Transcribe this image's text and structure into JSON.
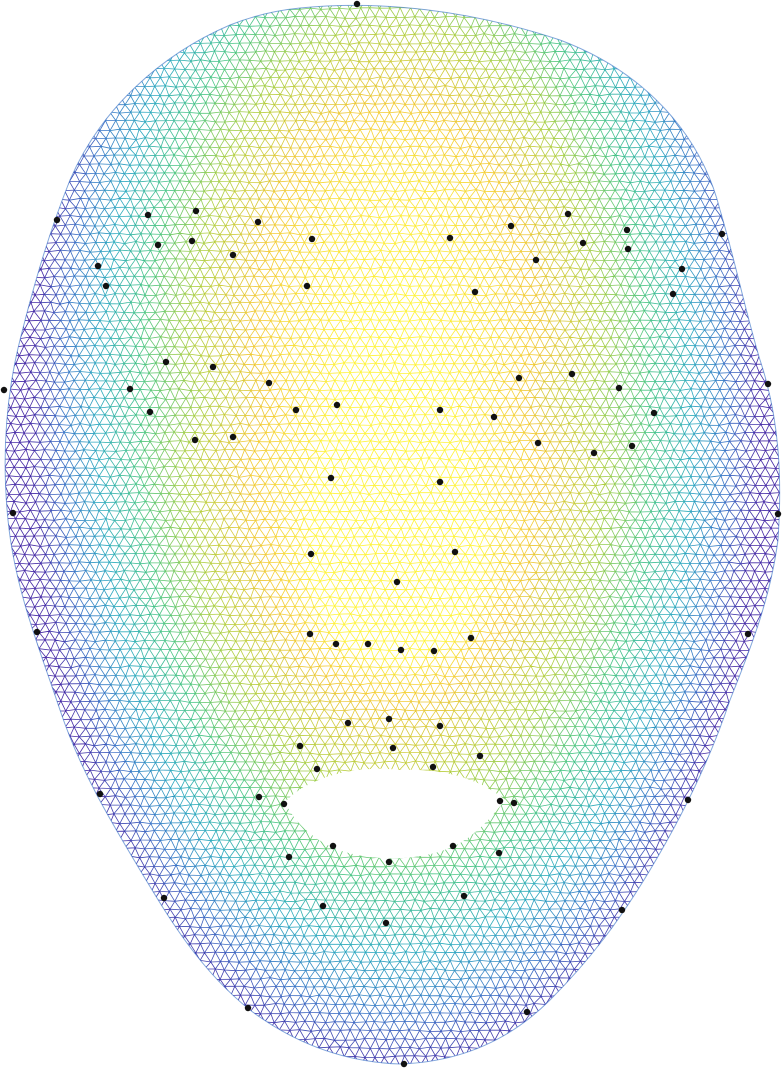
{
  "figure": {
    "kind": "3d-face-wireframe-mesh",
    "colormap": [
      "#3b1fa0",
      "#2f6cc4",
      "#22a6bd",
      "#3fc27e",
      "#a7cc3a",
      "#f0c52a",
      "#fff22e"
    ],
    "background_color": "#ffffff",
    "landmark_color": "#111111",
    "landmark_count": 68,
    "holes": [
      "mouth-opening"
    ]
  }
}
